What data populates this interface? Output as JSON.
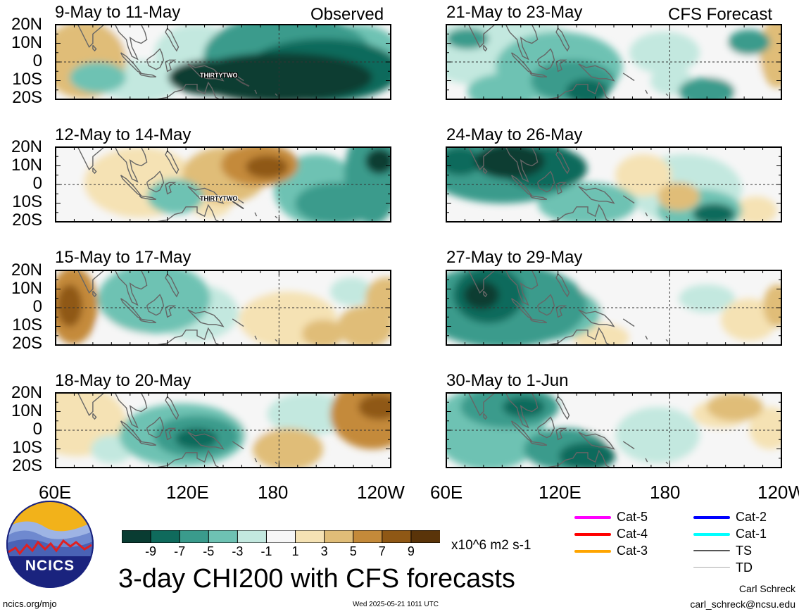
{
  "panels_observed": [
    {
      "title": "9-May to 11-May",
      "tag": "Observed",
      "storm": "THIRTYTWO"
    },
    {
      "title": "12-May to 14-May",
      "storm": "THIRTYTWO"
    },
    {
      "title": "15-May to 17-May"
    },
    {
      "title": "18-May to 20-May"
    }
  ],
  "panels_forecast": [
    {
      "title": "21-May to 23-May",
      "tag": "CFS Forecast"
    },
    {
      "title": "24-May to 26-May"
    },
    {
      "title": "27-May to 29-May"
    },
    {
      "title": "30-May to 1-Jun"
    }
  ],
  "lat_labels": [
    "20N",
    "10N",
    "0",
    "10S",
    "20S"
  ],
  "lon_labels": [
    "60E",
    "120E",
    "180",
    "120W"
  ],
  "colorbar": {
    "ticks": [
      "-9",
      "-7",
      "-5",
      "-3",
      "-1",
      "1",
      "3",
      "5",
      "7",
      "9"
    ],
    "colors": [
      "#093c32",
      "#0f6a5c",
      "#3a9b8c",
      "#6ec2b3",
      "#c3e8df",
      "#f6f6f6",
      "#f5e2b4",
      "#e0bd78",
      "#c48a3a",
      "#8f5815",
      "#5a3409"
    ],
    "units": "x10^6 m2 s-1"
  },
  "title": "3-day CHI200 with CFS forecasts",
  "logo_text": "NCICS",
  "url": "ncics.org/mjo",
  "timestamp": "Wed 2025-05-21 1011 UTC",
  "author": "Carl Schreck",
  "email": "carl_schreck@ncsu.edu",
  "legend": [
    {
      "label": "Cat-5",
      "color": "#ff00ff"
    },
    {
      "label": "Cat-4",
      "color": "#ff0000"
    },
    {
      "label": "Cat-3",
      "color": "#ffa500"
    },
    {
      "label": "Cat-2",
      "color": "#0000ff"
    },
    {
      "label": "Cat-1",
      "color": "#00ffff"
    },
    {
      "label": "TS",
      "color": "#555555"
    },
    {
      "label": "TD",
      "color": "#aaaaaa"
    }
  ]
}
